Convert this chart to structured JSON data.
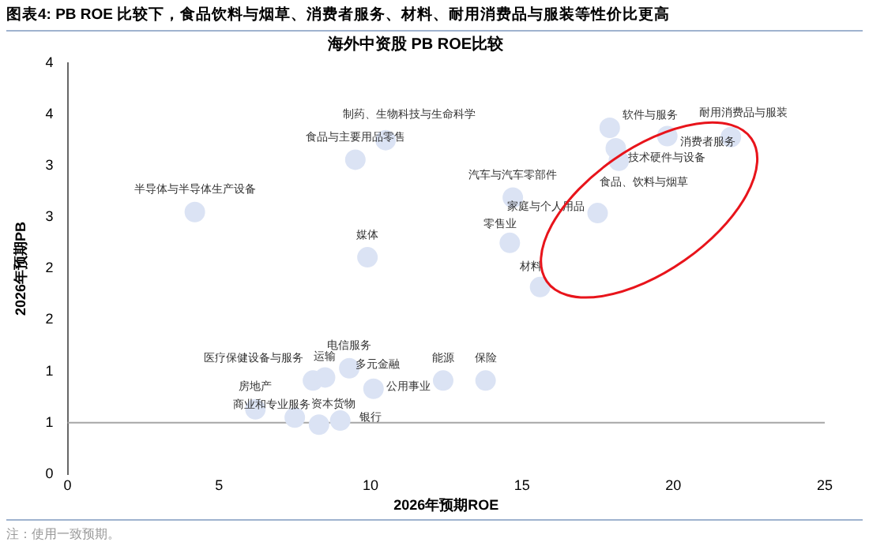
{
  "chart_data": {
    "type": "scatter",
    "title": "图表4:  PB ROE 比较下，食品饮料与烟草、消费者服务、材料、耐用消费品与服装等性价比更高",
    "subtitle": "海外中资股 PB ROE比较",
    "xlabel": "2026年预期ROE",
    "ylabel": "2026年预期PB",
    "x": [
      4.2,
      9.5,
      10.5,
      9.9,
      17.9,
      21.9,
      19.8,
      18.1,
      18.2,
      17.5,
      14.7,
      14.6,
      15.6,
      8.1,
      8.5,
      9.3,
      10.1,
      6.2,
      7.5,
      9.0,
      12.4,
      13.8,
      8.3
    ],
    "series": [
      {
        "color": "#dbe3f4",
        "values": [
          2.55,
          3.06,
          3.25,
          2.11,
          3.37,
          3.28,
          3.29,
          3.17,
          3.05,
          2.54,
          2.69,
          2.25,
          1.82,
          0.91,
          0.94,
          1.03,
          0.83,
          0.63,
          0.55,
          0.52,
          0.91,
          0.91,
          0.48
        ]
      }
    ],
    "marker": "circle",
    "legend": false,
    "grid": false,
    "xlim": [
      0,
      25
    ],
    "xticks": [
      0,
      5,
      10,
      15,
      20,
      25
    ],
    "ylim": [
      0,
      4
    ],
    "yticks": [
      0,
      {
        "value": 0.5,
        "label": "1"
      },
      1,
      {
        "value": 1.5,
        "label": "2"
      },
      2,
      {
        "value": 2.5,
        "label": "3"
      },
      3,
      {
        "value": 3.5,
        "label": "4"
      },
      4
    ],
    "ref_lines": [
      {
        "axis": "y",
        "value": 0.5,
        "color": "#a6a6a6"
      }
    ],
    "annotations": [
      {
        "text": "半导体与半导体生产设备",
        "x": 4.2,
        "y": 2.55
      },
      {
        "text": "食品与主要用品零售",
        "x": 9.5,
        "y": 3.06
      },
      {
        "text": "制药、生物科技与生命科学",
        "x": 10.5,
        "y": 3.25
      },
      {
        "text": "媒体",
        "x": 9.9,
        "y": 2.11
      },
      {
        "text": "软件与服务",
        "x": 17.9,
        "y": 3.37
      },
      {
        "text": "耐用消费品与服装",
        "x": 21.9,
        "y": 3.28
      },
      {
        "text": "消费者服务",
        "x": 19.8,
        "y": 3.29
      },
      {
        "text": "技术硬件与设备",
        "x": 18.1,
        "y": 3.17
      },
      {
        "text": "食品、饮料与烟草",
        "x": 18.2,
        "y": 3.05
      },
      {
        "text": "家庭与个人用品",
        "x": 17.5,
        "y": 2.54
      },
      {
        "text": "汽车与汽车零部件",
        "x": 14.7,
        "y": 2.69
      },
      {
        "text": "零售业",
        "x": 14.6,
        "y": 2.25
      },
      {
        "text": "材料",
        "x": 15.6,
        "y": 1.82
      },
      {
        "text": "医疗保健设备与服务",
        "x": 8.1,
        "y": 0.91
      },
      {
        "text": "运输",
        "x": 8.5,
        "y": 0.94
      },
      {
        "text": "电信服务",
        "x": 9.3,
        "y": 1.03
      },
      {
        "text": "公用事业",
        "x": 10.1,
        "y": 0.83
      },
      {
        "text": "房地产",
        "x": 6.2,
        "y": 0.63
      },
      {
        "text": "商业和专业服务",
        "x": 7.5,
        "y": 0.55
      },
      {
        "text": "银行",
        "x": 9.0,
        "y": 0.52
      },
      {
        "text": "能源",
        "x": 12.4,
        "y": 0.91
      },
      {
        "text": "保险",
        "x": 13.8,
        "y": 0.91
      },
      {
        "text": "资本货物",
        "x": 8.3,
        "y": 0.48
      },
      {
        "text": "多元金融",
        "x": 9.6,
        "y": 0.83
      },
      "注：使用一致预期。"
    ]
  }
}
